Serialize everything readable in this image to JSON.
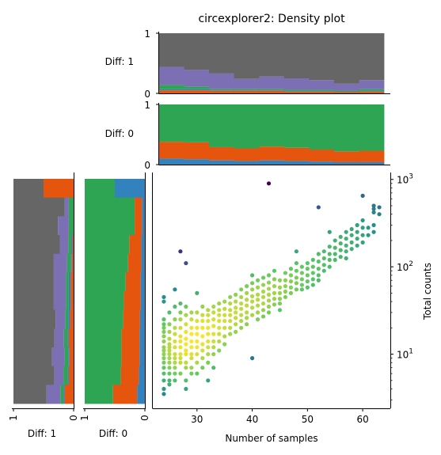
{
  "chart_data": {
    "title": "circexplorer2: Density plot",
    "colors": {
      "gray": "#666666",
      "purple": "#7d6fb3",
      "green": "#2ea553",
      "orange": "#e6550d",
      "blue": "#3182bd"
    },
    "top_panels": [
      {
        "label": "Diff: 1",
        "type": "stacked-step",
        "y_ticks": [
          "1",
          "0"
        ],
        "ylim": [
          0,
          1
        ],
        "bins": 9,
        "stack_order": [
          "orange",
          "blue",
          "green",
          "purple",
          "gray"
        ],
        "series": {
          "orange": [
            0.05,
            0.05,
            0.04,
            0.04,
            0.04,
            0.03,
            0.03,
            0.02,
            0.03
          ],
          "blue": [
            0.02,
            0.02,
            0.01,
            0.01,
            0.01,
            0.01,
            0.01,
            0.0,
            0.01
          ],
          "green": [
            0.07,
            0.04,
            0.02,
            0.02,
            0.02,
            0.02,
            0.02,
            0.02,
            0.03
          ],
          "purple": [
            0.3,
            0.28,
            0.26,
            0.17,
            0.21,
            0.19,
            0.16,
            0.12,
            0.15
          ],
          "gray": [
            0.56,
            0.61,
            0.67,
            0.76,
            0.72,
            0.75,
            0.78,
            0.84,
            0.78
          ]
        }
      },
      {
        "label": "Diff: 0",
        "type": "stacked-step",
        "y_ticks": [
          "1",
          "0"
        ],
        "ylim": [
          0,
          1
        ],
        "bins": 9,
        "stack_order": [
          "blue",
          "orange",
          "green"
        ],
        "series": {
          "blue": [
            0.1,
            0.09,
            0.07,
            0.06,
            0.07,
            0.06,
            0.05,
            0.04,
            0.04
          ],
          "orange": [
            0.28,
            0.28,
            0.22,
            0.21,
            0.23,
            0.22,
            0.2,
            0.18,
            0.19
          ],
          "green": [
            0.62,
            0.63,
            0.71,
            0.73,
            0.7,
            0.72,
            0.75,
            0.78,
            0.77
          ]
        }
      }
    ],
    "side_panels": [
      {
        "label": "Diff: 1",
        "x_ticks": [
          "1",
          "0"
        ],
        "bins": 12,
        "stack_order_from_axis": [
          "orange",
          "blue",
          "green",
          "purple",
          "gray"
        ],
        "series_top_to_bottom": {
          "orange": [
            0.5,
            0.0,
            0.0,
            0.02,
            0.03,
            0.05,
            0.05,
            0.06,
            0.08,
            0.07,
            0.08,
            0.15
          ],
          "blue": [
            0.0,
            0.0,
            0.0,
            0.02,
            0.02,
            0.03,
            0.03,
            0.03,
            0.02,
            0.02,
            0.02,
            0.02
          ],
          "green": [
            0.0,
            0.08,
            0.08,
            0.05,
            0.06,
            0.05,
            0.05,
            0.05,
            0.06,
            0.06,
            0.07,
            0.05
          ],
          "purple": [
            0.0,
            0.07,
            0.18,
            0.14,
            0.22,
            0.2,
            0.2,
            0.16,
            0.16,
            0.21,
            0.15,
            0.23
          ],
          "gray": [
            0.5,
            0.85,
            0.74,
            0.77,
            0.67,
            0.67,
            0.67,
            0.7,
            0.68,
            0.64,
            0.68,
            0.55
          ]
        }
      },
      {
        "label": "Diff: 0",
        "x_ticks": [
          "1",
          "0"
        ],
        "bins": 12,
        "stack_order_from_axis": [
          "blue",
          "orange",
          "green"
        ],
        "series_top_to_bottom": {
          "blue": [
            0.5,
            0.05,
            0.05,
            0.06,
            0.06,
            0.07,
            0.07,
            0.08,
            0.09,
            0.09,
            0.1,
            0.13
          ],
          "orange": [
            0.0,
            0.12,
            0.12,
            0.2,
            0.22,
            0.25,
            0.28,
            0.28,
            0.3,
            0.3,
            0.3,
            0.4
          ],
          "green": [
            0.5,
            0.83,
            0.83,
            0.74,
            0.72,
            0.68,
            0.65,
            0.64,
            0.61,
            0.61,
            0.6,
            0.47
          ]
        }
      }
    ],
    "scatter": {
      "type": "scatter",
      "xlabel": "Number of samples",
      "ylabel": "Total counts",
      "xlim": [
        22,
        65
      ],
      "ylim": [
        2.4,
        1200
      ],
      "y_scale": "log",
      "x_ticks": [
        30,
        40,
        50,
        60
      ],
      "y_tick_labels": [
        {
          "value": 10,
          "base": "10",
          "exp": "1"
        },
        {
          "value": 100,
          "base": "10",
          "exp": "2"
        },
        {
          "value": 1000,
          "base": "10",
          "exp": "3"
        }
      ],
      "color_scale": "viridis (density)",
      "points": [
        [
          24,
          45
        ],
        [
          24,
          40
        ],
        [
          24,
          25
        ],
        [
          24,
          22
        ],
        [
          24,
          20
        ],
        [
          24,
          18
        ],
        [
          24,
          16
        ],
        [
          24,
          14
        ],
        [
          24,
          12
        ],
        [
          24,
          11
        ],
        [
          24,
          10
        ],
        [
          24,
          9
        ],
        [
          24,
          8
        ],
        [
          24,
          7
        ],
        [
          24,
          6
        ],
        [
          24,
          5
        ],
        [
          24,
          4
        ],
        [
          24,
          3.5
        ],
        [
          25,
          30
        ],
        [
          25,
          22
        ],
        [
          25,
          18
        ],
        [
          25,
          15
        ],
        [
          25,
          13
        ],
        [
          25,
          12
        ],
        [
          25,
          11
        ],
        [
          25,
          10
        ],
        [
          25,
          9
        ],
        [
          25,
          8
        ],
        [
          25,
          7
        ],
        [
          25,
          6
        ],
        [
          25,
          5
        ],
        [
          25,
          4.5
        ],
        [
          26,
          55
        ],
        [
          26,
          35
        ],
        [
          26,
          25
        ],
        [
          26,
          20
        ],
        [
          26,
          17
        ],
        [
          26,
          14
        ],
        [
          26,
          12
        ],
        [
          26,
          10
        ],
        [
          26,
          9
        ],
        [
          26,
          8
        ],
        [
          26,
          7
        ],
        [
          26,
          6
        ],
        [
          26,
          5
        ],
        [
          27,
          150
        ],
        [
          27,
          38
        ],
        [
          27,
          30
        ],
        [
          27,
          25
        ],
        [
          27,
          20
        ],
        [
          27,
          16
        ],
        [
          27,
          14
        ],
        [
          27,
          12
        ],
        [
          27,
          10
        ],
        [
          27,
          9
        ],
        [
          27,
          8
        ],
        [
          27,
          6
        ],
        [
          28,
          110
        ],
        [
          28,
          35
        ],
        [
          28,
          28
        ],
        [
          28,
          22
        ],
        [
          28,
          18
        ],
        [
          28,
          15
        ],
        [
          28,
          13
        ],
        [
          28,
          11
        ],
        [
          28,
          10
        ],
        [
          28,
          8
        ],
        [
          28,
          7
        ],
        [
          28,
          5
        ],
        [
          28,
          4
        ],
        [
          29,
          30
        ],
        [
          29,
          25
        ],
        [
          29,
          20
        ],
        [
          29,
          17
        ],
        [
          29,
          14
        ],
        [
          29,
          12
        ],
        [
          29,
          10
        ],
        [
          29,
          9
        ],
        [
          29,
          7
        ],
        [
          29,
          6
        ],
        [
          30,
          50
        ],
        [
          30,
          30
        ],
        [
          30,
          24
        ],
        [
          30,
          20
        ],
        [
          30,
          17
        ],
        [
          30,
          14
        ],
        [
          30,
          12
        ],
        [
          30,
          10
        ],
        [
          30,
          8
        ],
        [
          30,
          6
        ],
        [
          31,
          35
        ],
        [
          31,
          28
        ],
        [
          31,
          24
        ],
        [
          31,
          20
        ],
        [
          31,
          16
        ],
        [
          31,
          13
        ],
        [
          31,
          11
        ],
        [
          31,
          9
        ],
        [
          31,
          7
        ],
        [
          32,
          32
        ],
        [
          32,
          28
        ],
        [
          32,
          24
        ],
        [
          32,
          20
        ],
        [
          32,
          17
        ],
        [
          32,
          14
        ],
        [
          32,
          12
        ],
        [
          32,
          10
        ],
        [
          32,
          8
        ],
        [
          32,
          5
        ],
        [
          33,
          35
        ],
        [
          33,
          30
        ],
        [
          33,
          25
        ],
        [
          33,
          21
        ],
        [
          33,
          17
        ],
        [
          33,
          14
        ],
        [
          33,
          12
        ],
        [
          33,
          10
        ],
        [
          33,
          7
        ],
        [
          34,
          38
        ],
        [
          34,
          32
        ],
        [
          34,
          28
        ],
        [
          34,
          24
        ],
        [
          34,
          20
        ],
        [
          34,
          17
        ],
        [
          34,
          14
        ],
        [
          34,
          11
        ],
        [
          35,
          40
        ],
        [
          35,
          33
        ],
        [
          35,
          28
        ],
        [
          35,
          24
        ],
        [
          35,
          20
        ],
        [
          35,
          16
        ],
        [
          35,
          13
        ],
        [
          36,
          45
        ],
        [
          36,
          38
        ],
        [
          36,
          32
        ],
        [
          36,
          28
        ],
        [
          36,
          24
        ],
        [
          36,
          20
        ],
        [
          36,
          17
        ],
        [
          37,
          48
        ],
        [
          37,
          40
        ],
        [
          37,
          34
        ],
        [
          37,
          30
        ],
        [
          37,
          26
        ],
        [
          37,
          22
        ],
        [
          37,
          18
        ],
        [
          38,
          55
        ],
        [
          38,
          45
        ],
        [
          38,
          38
        ],
        [
          38,
          33
        ],
        [
          38,
          28
        ],
        [
          38,
          24
        ],
        [
          38,
          20
        ],
        [
          39,
          60
        ],
        [
          39,
          50
        ],
        [
          39,
          42
        ],
        [
          39,
          36
        ],
        [
          39,
          30
        ],
        [
          39,
          26
        ],
        [
          39,
          22
        ],
        [
          40,
          80
        ],
        [
          40,
          65
        ],
        [
          40,
          55
        ],
        [
          40,
          46
        ],
        [
          40,
          40
        ],
        [
          40,
          34
        ],
        [
          40,
          28
        ],
        [
          40,
          9
        ],
        [
          41,
          70
        ],
        [
          41,
          58
        ],
        [
          41,
          48
        ],
        [
          41,
          42
        ],
        [
          41,
          36
        ],
        [
          41,
          30
        ],
        [
          41,
          25
        ],
        [
          42,
          75
        ],
        [
          42,
          62
        ],
        [
          42,
          52
        ],
        [
          42,
          45
        ],
        [
          42,
          38
        ],
        [
          42,
          32
        ],
        [
          42,
          27
        ],
        [
          43,
          900
        ],
        [
          43,
          80
        ],
        [
          43,
          66
        ],
        [
          43,
          56
        ],
        [
          43,
          48
        ],
        [
          43,
          41
        ],
        [
          43,
          35
        ],
        [
          43,
          30
        ],
        [
          44,
          90
        ],
        [
          44,
          72
        ],
        [
          44,
          60
        ],
        [
          44,
          50
        ],
        [
          44,
          43
        ],
        [
          44,
          37
        ],
        [
          45,
          70
        ],
        [
          45,
          58
        ],
        [
          45,
          50
        ],
        [
          45,
          43
        ],
        [
          45,
          38
        ],
        [
          45,
          32
        ],
        [
          46,
          85
        ],
        [
          46,
          70
        ],
        [
          46,
          60
        ],
        [
          46,
          52
        ],
        [
          46,
          45
        ],
        [
          47,
          95
        ],
        [
          47,
          80
        ],
        [
          47,
          68
        ],
        [
          47,
          58
        ],
        [
          47,
          50
        ],
        [
          48,
          150
        ],
        [
          48,
          110
        ],
        [
          48,
          90
        ],
        [
          48,
          75
        ],
        [
          48,
          65
        ],
        [
          48,
          55
        ],
        [
          49,
          100
        ],
        [
          49,
          85
        ],
        [
          49,
          72
        ],
        [
          49,
          62
        ],
        [
          49,
          55
        ],
        [
          50,
          110
        ],
        [
          50,
          95
        ],
        [
          50,
          80
        ],
        [
          50,
          68
        ],
        [
          50,
          58
        ],
        [
          51,
          120
        ],
        [
          51,
          100
        ],
        [
          51,
          85
        ],
        [
          51,
          72
        ],
        [
          51,
          62
        ],
        [
          52,
          480
        ],
        [
          52,
          140
        ],
        [
          52,
          115
        ],
        [
          52,
          95
        ],
        [
          52,
          80
        ],
        [
          52,
          70
        ],
        [
          53,
          150
        ],
        [
          53,
          125
        ],
        [
          53,
          105
        ],
        [
          53,
          90
        ],
        [
          54,
          250
        ],
        [
          54,
          170
        ],
        [
          54,
          140
        ],
        [
          54,
          120
        ],
        [
          54,
          100
        ],
        [
          55,
          200
        ],
        [
          55,
          165
        ],
        [
          55,
          140
        ],
        [
          55,
          120
        ],
        [
          56,
          220
        ],
        [
          56,
          185
        ],
        [
          56,
          155
        ],
        [
          56,
          130
        ],
        [
          57,
          250
        ],
        [
          57,
          210
        ],
        [
          57,
          175
        ],
        [
          57,
          150
        ],
        [
          57,
          125
        ],
        [
          58,
          270
        ],
        [
          58,
          230
        ],
        [
          58,
          190
        ],
        [
          58,
          160
        ],
        [
          59,
          300
        ],
        [
          59,
          250
        ],
        [
          59,
          210
        ],
        [
          59,
          175
        ],
        [
          60,
          650
        ],
        [
          60,
          340
        ],
        [
          60,
          280
        ],
        [
          60,
          230
        ],
        [
          60,
          190
        ],
        [
          61,
          280
        ],
        [
          61,
          230
        ],
        [
          62,
          500
        ],
        [
          62,
          460
        ],
        [
          62,
          420
        ],
        [
          62,
          300
        ],
        [
          62,
          250
        ],
        [
          63,
          480
        ],
        [
          63,
          400
        ]
      ]
    }
  }
}
